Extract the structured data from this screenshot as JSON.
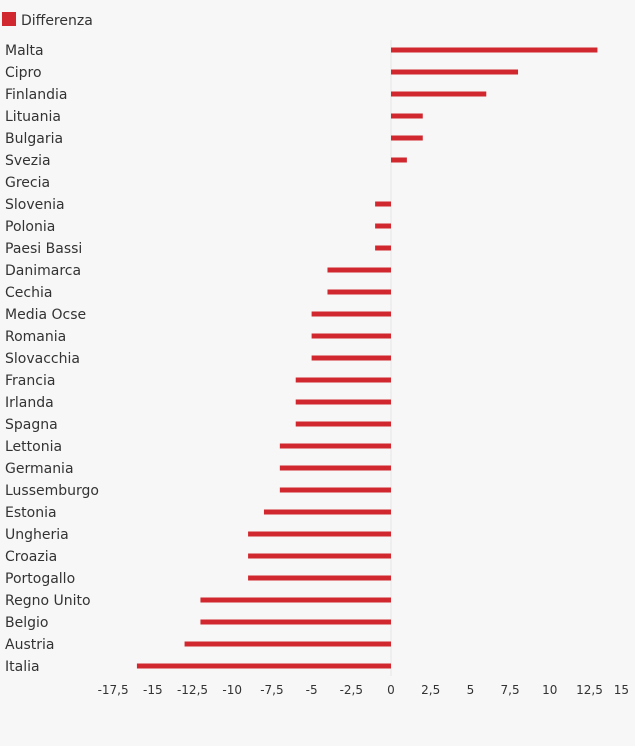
{
  "chart_data": {
    "type": "bar",
    "orientation": "horizontal",
    "categories": [
      "Malta",
      "Cipro",
      "Finlandia",
      "Lituania",
      "Bulgaria",
      "Svezia",
      "Grecia",
      "Slovenia",
      "Polonia",
      "Paesi Bassi",
      "Danimarca",
      "Cechia",
      "Media Ocse",
      "Romania",
      "Slovacchia",
      "Francia",
      "Irlanda",
      "Spagna",
      "Lettonia",
      "Germania",
      "Lussemburgo",
      "Estonia",
      "Ungheria",
      "Croazia",
      "Portogallo",
      "Regno Unito",
      "Belgio",
      "Austria",
      "Italia"
    ],
    "series": [
      {
        "name": "Differenza",
        "color": "#d0282e",
        "values": [
          13,
          8,
          6,
          2,
          2,
          1,
          0,
          -1,
          -1,
          -1,
          -4,
          -4,
          -5,
          -5,
          -5,
          -6,
          -6,
          -6,
          -7,
          -7,
          -7,
          -8,
          -9,
          -9,
          -9,
          -12,
          -12,
          -13,
          -16
        ]
      }
    ],
    "xlim": [
      -17.5,
      15
    ],
    "xticks": [
      "-17,5",
      "-15",
      "-12,5",
      "-10",
      "-7,5",
      "-5",
      "-2,5",
      "0",
      "2,5",
      "5",
      "7,5",
      "10",
      "12,5",
      "15"
    ],
    "xtick_values": [
      -17.5,
      -15,
      -12.5,
      -10,
      -7.5,
      -5,
      -2.5,
      0,
      2.5,
      5,
      7.5,
      10,
      12.5,
      15
    ],
    "legend": {
      "position": "top-left",
      "label": "Differenza"
    },
    "grid": false
  }
}
